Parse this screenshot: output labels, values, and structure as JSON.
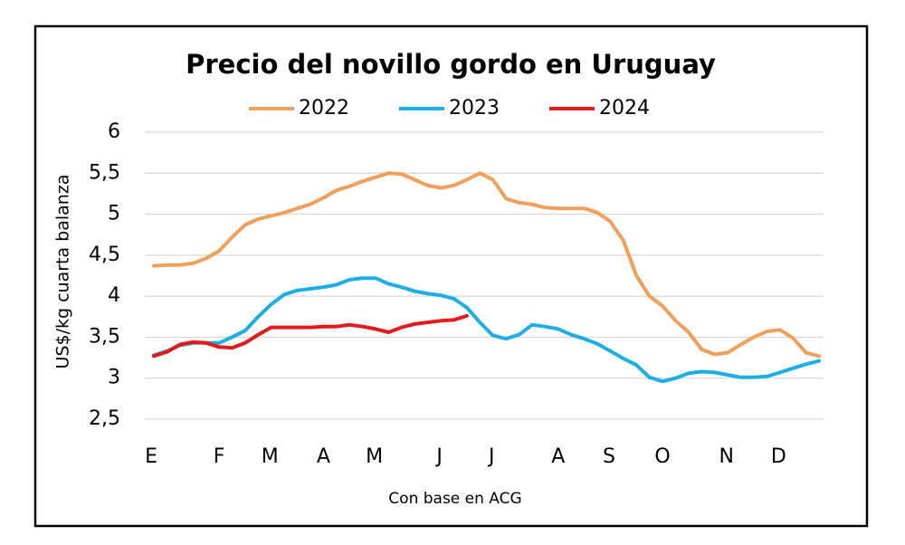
{
  "chart_data": {
    "type": "line",
    "title": "Precio del novillo gordo en Uruguay",
    "y_label": "US$/kg cuarta balanza",
    "x_label": "Con base en ACG",
    "x": [
      1,
      2,
      3,
      4,
      5,
      6,
      7,
      8,
      9,
      10,
      11,
      12,
      13,
      14,
      15,
      16,
      17,
      18,
      19,
      20,
      21,
      22,
      23,
      24,
      25,
      26,
      27,
      28,
      29,
      30,
      31,
      32,
      33,
      34,
      35,
      36,
      37,
      38,
      39,
      40,
      41,
      42,
      43,
      44,
      45,
      46,
      47,
      48,
      49,
      50,
      51,
      52
    ],
    "xlim": [
      1,
      52
    ],
    "xticks": [
      {
        "value": 0.8,
        "label": "E"
      },
      {
        "value": 6,
        "label": "F"
      },
      {
        "value": 9.9,
        "label": "M"
      },
      {
        "value": 14,
        "label": "A"
      },
      {
        "value": 17.9,
        "label": "M"
      },
      {
        "value": 22.9,
        "label": "J"
      },
      {
        "value": 26.9,
        "label": "J"
      },
      {
        "value": 32,
        "label": "A"
      },
      {
        "value": 35.9,
        "label": "S"
      },
      {
        "value": 40,
        "label": "O"
      },
      {
        "value": 44.9,
        "label": "N"
      },
      {
        "value": 48.9,
        "label": "D"
      }
    ],
    "ylim": [
      2.5,
      6
    ],
    "yticks": [
      {
        "value": 2.5,
        "label": "2,5"
      },
      3,
      {
        "value": 3.5,
        "label": "3,5"
      },
      4,
      {
        "value": 4.5,
        "label": "4,5"
      },
      5,
      {
        "value": 5.5,
        "label": "5,5"
      },
      6
    ],
    "grid": true,
    "legend": "top",
    "series": [
      {
        "name": "2022",
        "color": "#f0a05a",
        "values": [
          4.37,
          4.38,
          4.38,
          4.4,
          4.46,
          4.55,
          4.72,
          4.87,
          4.94,
          4.98,
          5.02,
          5.07,
          5.12,
          5.2,
          5.29,
          5.34,
          5.4,
          5.45,
          5.5,
          5.49,
          5.42,
          5.35,
          5.32,
          5.35,
          5.42,
          5.5,
          5.42,
          5.19,
          5.14,
          5.12,
          5.08,
          5.07,
          5.07,
          5.07,
          5.02,
          4.91,
          4.68,
          4.25,
          4.0,
          3.88,
          3.7,
          3.56,
          3.35,
          3.29,
          3.31,
          3.41,
          3.5,
          3.57,
          3.59,
          3.49,
          3.31,
          3.27
        ]
      },
      {
        "name": "2023",
        "color": "#1eaee6",
        "values": [
          3.28,
          3.33,
          3.4,
          3.43,
          3.43,
          3.43,
          3.5,
          3.58,
          3.75,
          3.9,
          4.02,
          4.07,
          4.09,
          4.11,
          4.14,
          4.2,
          4.22,
          4.22,
          4.15,
          4.11,
          4.06,
          4.03,
          4.01,
          3.97,
          3.86,
          3.68,
          3.52,
          3.48,
          3.53,
          3.65,
          3.63,
          3.6,
          3.53,
          3.48,
          3.42,
          3.33,
          3.24,
          3.16,
          3.01,
          2.96,
          3.0,
          3.06,
          3.08,
          3.07,
          3.04,
          3.01,
          3.01,
          3.02,
          3.07,
          3.12,
          3.17,
          3.21
        ]
      },
      {
        "name": "2024",
        "color": "#e31a1c",
        "values": [
          3.27,
          3.32,
          3.41,
          3.44,
          3.43,
          3.38,
          3.37,
          3.43,
          3.53,
          3.62,
          3.62,
          3.62,
          3.62,
          3.63,
          3.63,
          3.65,
          3.63,
          3.6,
          3.56,
          3.62,
          3.66,
          3.68,
          3.7,
          3.71,
          3.76,
          null,
          null,
          null,
          null,
          null,
          null,
          null,
          null,
          null,
          null,
          null,
          null,
          null,
          null,
          null,
          null,
          null,
          null,
          null,
          null,
          null,
          null,
          null,
          null,
          null,
          null,
          null
        ]
      }
    ]
  }
}
